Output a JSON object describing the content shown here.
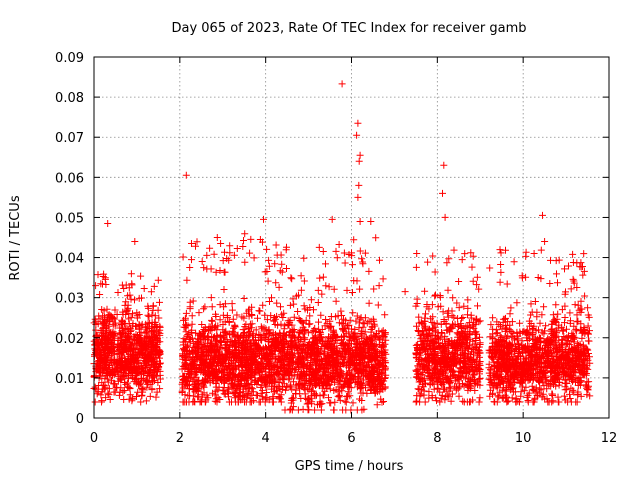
{
  "chart_data": {
    "type": "scatter",
    "title": "Day 065 of 2023, Rate Of TEC Index for receiver gamb",
    "xlabel": "GPS time / hours",
    "ylabel": "ROTI / TECUs",
    "xlim": [
      0,
      12
    ],
    "ylim": [
      0,
      0.09
    ],
    "xticks": [
      0,
      2,
      4,
      6,
      8,
      10,
      12
    ],
    "xtick_labels": [
      "0",
      "2",
      "4",
      "6",
      "8",
      "10",
      "12"
    ],
    "yticks": [
      0,
      0.01,
      0.02,
      0.03,
      0.04,
      0.05,
      0.06,
      0.07,
      0.08,
      0.09
    ],
    "ytick_labels": [
      "0",
      "0.01",
      "0.02",
      "0.03",
      "0.04",
      "0.05",
      "0.06",
      "0.07",
      "0.08",
      "0.09"
    ],
    "grid": true,
    "marker": "+",
    "marker_color": "#ff0000",
    "series": [
      {
        "name": "ROTI",
        "clusters": [
          {
            "x_range": [
              0.0,
              1.55
            ],
            "y_center": 0.016,
            "y_spread": 0.009,
            "y_min": 0.004,
            "y_max": 0.036,
            "count": 900
          },
          {
            "x_range": [
              2.05,
              4.4
            ],
            "y_center": 0.014,
            "y_spread": 0.009,
            "y_min": 0.004,
            "y_max": 0.046,
            "count": 1300
          },
          {
            "x_range": [
              4.4,
              6.8
            ],
            "y_center": 0.014,
            "y_spread": 0.009,
            "y_min": 0.002,
            "y_max": 0.045,
            "count": 1300
          },
          {
            "x_range": [
              7.5,
              9.0
            ],
            "y_center": 0.015,
            "y_spread": 0.009,
            "y_min": 0.004,
            "y_max": 0.042,
            "count": 750
          },
          {
            "x_range": [
              9.2,
              11.55
            ],
            "y_center": 0.014,
            "y_spread": 0.009,
            "y_min": 0.004,
            "y_max": 0.042,
            "count": 1200
          }
        ],
        "notable_points": [
          {
            "x": 0.32,
            "y": 0.0485
          },
          {
            "x": 0.95,
            "y": 0.044
          },
          {
            "x": 2.15,
            "y": 0.0605
          },
          {
            "x": 3.95,
            "y": 0.0495
          },
          {
            "x": 5.55,
            "y": 0.0495
          },
          {
            "x": 5.78,
            "y": 0.0833
          },
          {
            "x": 6.15,
            "y": 0.0735
          },
          {
            "x": 6.12,
            "y": 0.0705
          },
          {
            "x": 6.2,
            "y": 0.0655
          },
          {
            "x": 6.18,
            "y": 0.064
          },
          {
            "x": 6.17,
            "y": 0.058
          },
          {
            "x": 6.15,
            "y": 0.055
          },
          {
            "x": 6.2,
            "y": 0.049
          },
          {
            "x": 6.45,
            "y": 0.049
          },
          {
            "x": 7.25,
            "y": 0.0315
          },
          {
            "x": 8.15,
            "y": 0.063
          },
          {
            "x": 8.12,
            "y": 0.056
          },
          {
            "x": 8.18,
            "y": 0.05
          },
          {
            "x": 10.45,
            "y": 0.0505
          },
          {
            "x": 10.5,
            "y": 0.044
          }
        ]
      }
    ]
  }
}
